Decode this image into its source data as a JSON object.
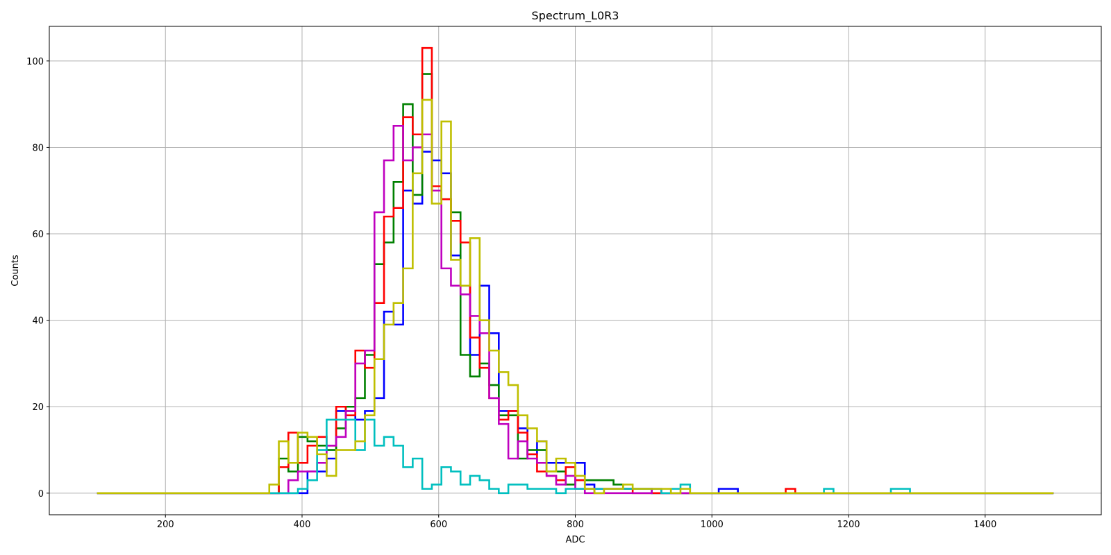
{
  "chart_data": {
    "type": "line",
    "style": "step-histogram",
    "title": "Spectrum_L0R3",
    "xlabel": "ADC",
    "ylabel": "Counts",
    "xlim": [
      30,
      1570
    ],
    "ylim": [
      -5,
      108
    ],
    "xticks": [
      200,
      400,
      600,
      800,
      1000,
      1200,
      1400
    ],
    "yticks": [
      0,
      20,
      40,
      60,
      80,
      100
    ],
    "grid": true,
    "bin_start": 100,
    "bin_width": 14,
    "bin_count": 100,
    "series": [
      {
        "color": "#0000ff",
        "bins": {
          "366": 0,
          "380": 0,
          "394": 0,
          "408": 5,
          "422": 5,
          "436": 8,
          "450": 19,
          "464": 19,
          "478": 17,
          "492": 19,
          "506": 22,
          "520": 42,
          "534": 39,
          "548": 70,
          "562": 67,
          "576": 79,
          "590": 77,
          "604": 74,
          "618": 55,
          "632": 48,
          "646": 32,
          "660": 48,
          "674": 37,
          "688": 19,
          "702": 19,
          "716": 15,
          "730": 9,
          "744": 12,
          "758": 7,
          "772": 7,
          "786": 7,
          "800": 7,
          "814": 2,
          "828": 1,
          "842": 1,
          "856": 1,
          "870": 1,
          "884": 1,
          "898": 1,
          "912": 0,
          "926": 0,
          "940": 0,
          "1010": 1,
          "1024": 1
        }
      },
      {
        "color": "#008000",
        "bins": {
          "366": 8,
          "380": 5,
          "394": 13,
          "408": 12,
          "422": 11,
          "436": 10,
          "450": 15,
          "464": 20,
          "478": 22,
          "492": 32,
          "506": 53,
          "520": 58,
          "534": 72,
          "548": 90,
          "562": 69,
          "576": 97,
          "590": 70,
          "604": 68,
          "618": 65,
          "632": 32,
          "646": 27,
          "660": 30,
          "674": 25,
          "688": 18,
          "702": 18,
          "716": 8,
          "730": 10,
          "744": 10,
          "758": 5,
          "772": 5,
          "786": 2,
          "800": 3,
          "814": 3,
          "828": 3,
          "842": 3,
          "856": 2,
          "870": 1,
          "884": 1,
          "898": 1
        }
      },
      {
        "color": "#ff0000",
        "bins": {
          "366": 6,
          "380": 14,
          "394": 7,
          "408": 11,
          "422": 13,
          "436": 11,
          "450": 20,
          "464": 18,
          "478": 33,
          "492": 29,
          "506": 44,
          "520": 64,
          "534": 66,
          "548": 87,
          "562": 83,
          "576": 103,
          "590": 71,
          "604": 68,
          "618": 63,
          "632": 58,
          "646": 36,
          "660": 29,
          "674": 22,
          "688": 17,
          "702": 19,
          "716": 14,
          "730": 9,
          "744": 5,
          "758": 4,
          "772": 3,
          "786": 6,
          "800": 3,
          "814": 1,
          "828": 0,
          "842": 1,
          "856": 1,
          "870": 1,
          "884": 0,
          "1108": 1
        }
      },
      {
        "color": "#bf00bf",
        "bins": {
          "380": 3,
          "394": 5,
          "408": 5,
          "422": 7,
          "436": 11,
          "450": 13,
          "464": 19,
          "478": 30,
          "492": 33,
          "506": 65,
          "520": 77,
          "534": 85,
          "548": 77,
          "562": 80,
          "576": 83,
          "590": 70,
          "604": 52,
          "618": 48,
          "632": 46,
          "646": 41,
          "660": 37,
          "674": 22,
          "688": 16,
          "702": 8,
          "716": 12,
          "730": 8,
          "744": 7,
          "758": 4,
          "772": 2,
          "786": 4,
          "800": 1,
          "814": 0,
          "912": 1,
          "926": 0
        }
      },
      {
        "color": "#00bfbf",
        "bins": {
          "394": 1,
          "408": 3,
          "422": 10,
          "436": 17,
          "450": 17,
          "464": 17,
          "478": 10,
          "492": 17,
          "506": 11,
          "520": 13,
          "534": 11,
          "548": 6,
          "562": 8,
          "576": 1,
          "590": 2,
          "604": 6,
          "618": 5,
          "632": 2,
          "646": 4,
          "660": 3,
          "674": 1,
          "688": 0,
          "702": 2,
          "716": 2,
          "730": 1,
          "744": 1,
          "758": 1,
          "772": 0,
          "786": 1,
          "800": 1,
          "814": 1,
          "828": 1,
          "842": 1,
          "856": 1,
          "870": 1,
          "884": 1,
          "898": 1,
          "912": 1,
          "926": 0,
          "940": 1,
          "954": 2,
          "1164": 1,
          "1262": 1,
          "1276": 1
        }
      },
      {
        "color": "#bfbf00",
        "bins": {
          "352": 2,
          "366": 12,
          "380": 7,
          "394": 14,
          "408": 13,
          "422": 9,
          "436": 4,
          "450": 10,
          "464": 10,
          "478": 12,
          "492": 18,
          "506": 31,
          "520": 39,
          "534": 44,
          "548": 52,
          "562": 74,
          "576": 91,
          "590": 67,
          "604": 86,
          "618": 54,
          "632": 48,
          "646": 59,
          "660": 40,
          "674": 33,
          "688": 28,
          "702": 25,
          "716": 18,
          "730": 15,
          "744": 12,
          "758": 5,
          "772": 8,
          "786": 7,
          "800": 4,
          "814": 1,
          "828": 0,
          "842": 1,
          "856": 1,
          "870": 2,
          "884": 1,
          "898": 1,
          "912": 1,
          "926": 1,
          "940": 0,
          "954": 1
        }
      }
    ]
  }
}
